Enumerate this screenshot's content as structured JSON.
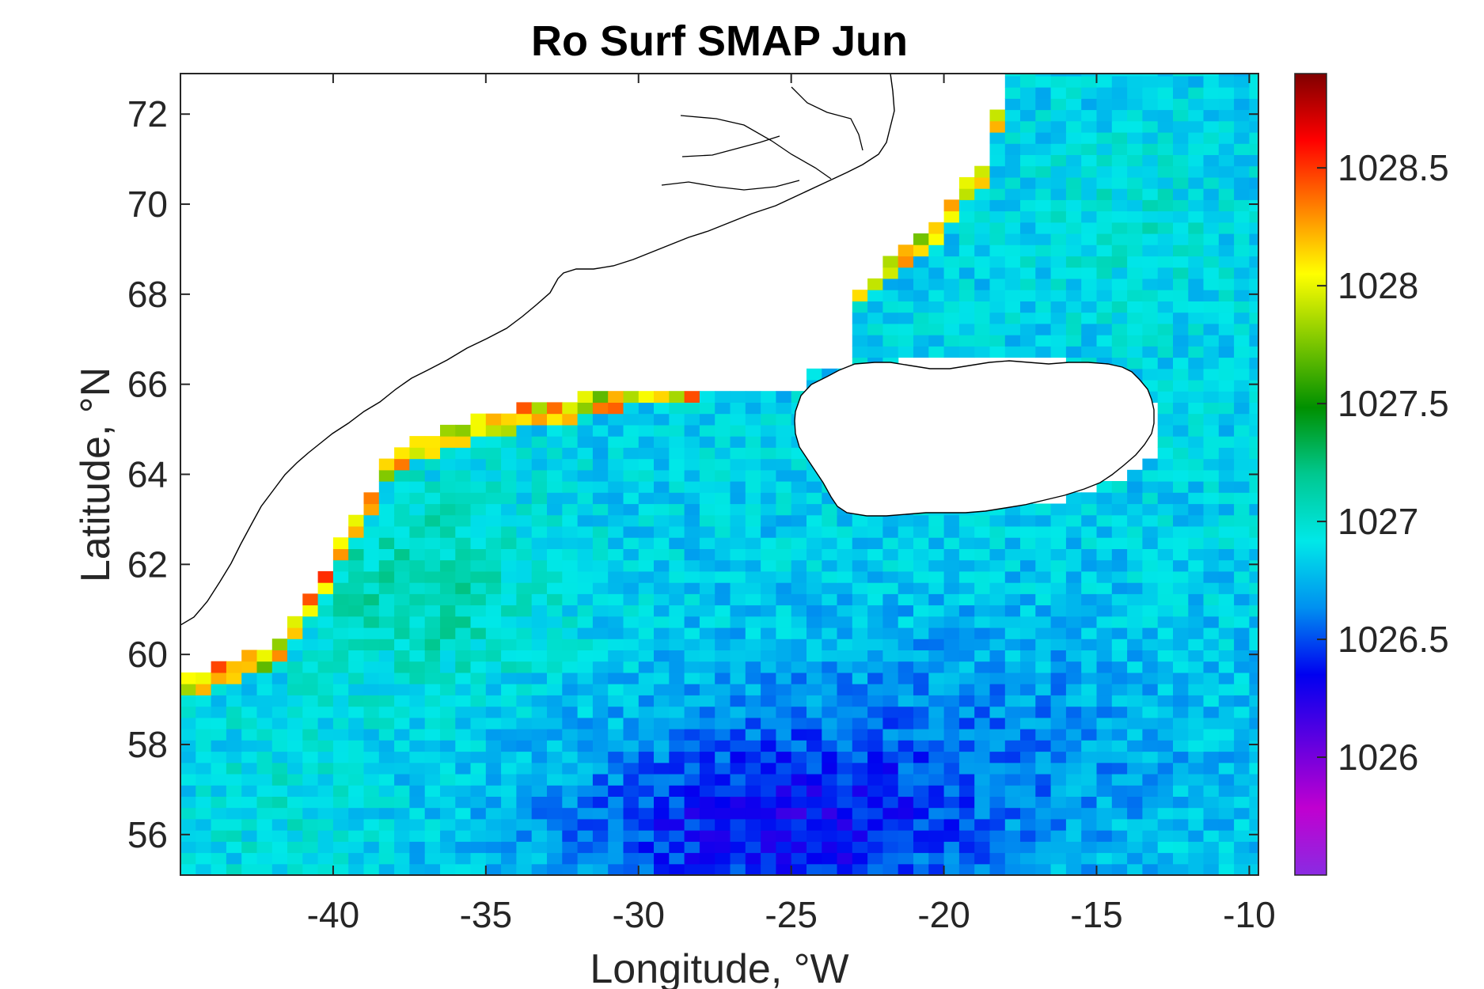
{
  "chart_data": {
    "type": "heatmap",
    "title": "Ro Surf SMAP Jun",
    "xlabel": "Longitude, °W",
    "ylabel": "Latitude, °N",
    "xlim": [
      -45,
      -9.7
    ],
    "ylim": [
      55.1,
      72.9
    ],
    "xticks": [
      -40,
      -35,
      -30,
      -25,
      -20,
      -15,
      -10
    ],
    "yticks": [
      56,
      58,
      60,
      62,
      64,
      66,
      68,
      70,
      72
    ],
    "xtick_labels": [
      "-40",
      "-35",
      "-30",
      "-25",
      "-20",
      "-15",
      "-10"
    ],
    "ytick_labels": [
      "56",
      "58",
      "60",
      "62",
      "64",
      "66",
      "68",
      "70",
      "72"
    ],
    "colorbar": {
      "range": [
        1025.5,
        1028.9
      ],
      "ticks": [
        1026,
        1026.5,
        1027,
        1027.5,
        1028,
        1028.5
      ],
      "tick_labels": [
        "1026",
        "1026.5",
        "1027",
        "1027.5",
        "1028",
        "1028.5"
      ],
      "colormap": [
        "#8a2be2",
        "#c000d0",
        "#6000e0",
        "#0000f0",
        "#0090f0",
        "#00e8e8",
        "#00c890",
        "#009000",
        "#80c800",
        "#ffff00",
        "#ff8000",
        "#ff0000",
        "#800000"
      ]
    },
    "grid_resolution_deg": [
      0.5,
      0.25
    ],
    "field_description": "Surface potential density (SMAP), June, subpolar North Atlantic; values ~1026.3 south of 58N near 30-20W, ~1027.2 in Irminger Sea, high values along Greenland and Iceland coasts",
    "grid": false,
    "land": [
      "Greenland",
      "Iceland"
    ]
  }
}
